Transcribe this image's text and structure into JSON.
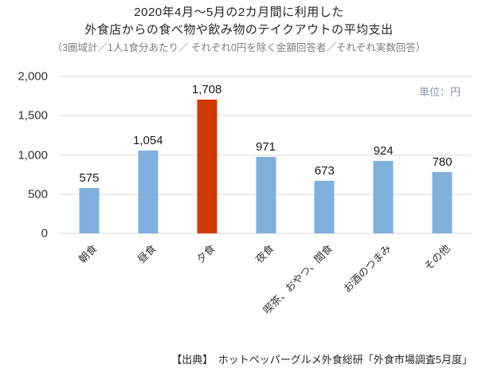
{
  "title": {
    "line1": "2020年4月～5月の2カ月間に利用した",
    "line2": "外食店からの食べ物や飲み物のテイクアウトの平均支出",
    "subtitle": "（3圏域計／1人1食分あたり／ それぞれ0円を除く金額回答者／それぞれ実数回答）"
  },
  "unit_label": "単位：円",
  "source": "【出典】　ホットペッパーグルメ外食総研「外食市場調査5月度」",
  "colors": {
    "bar_blue": "#7eb0dd",
    "bar_red": "#d03a05",
    "gridline": "#d9d9d9",
    "subtitle_gray": "#7f7f7f",
    "unit_gray_blue": "#8496b0",
    "text": "#262626"
  },
  "chart_data": {
    "type": "bar",
    "title": "2020年4月～5月の2カ月間に利用した外食店からの食べ物や飲み物のテイクアウトの平均支出",
    "subtitle": "（3圏域計／1人1食分あたり／ それぞれ0円を除く金額回答者／それぞれ実数回答）",
    "unit": "単位：円",
    "categories": [
      "朝食",
      "昼食",
      "夕食",
      "夜食",
      "喫茶、おやつ、間食",
      "お酒のつまみ",
      "その他"
    ],
    "values": [
      575,
      1054,
      1708,
      971,
      673,
      924,
      780
    ],
    "value_labels": [
      "575",
      "1,054",
      "1,708",
      "971",
      "673",
      "924",
      "780"
    ],
    "bar_colors": [
      "#7eb0dd",
      "#7eb0dd",
      "#d03a05",
      "#7eb0dd",
      "#7eb0dd",
      "#7eb0dd",
      "#7eb0dd"
    ],
    "highlight_index": 2,
    "xlabel": "",
    "ylabel": "",
    "ylim": [
      0,
      2000
    ],
    "yticks": [
      0,
      500,
      1000,
      1500,
      2000
    ],
    "ytick_labels": [
      "0",
      "500",
      "1,000",
      "1,500",
      "2,000"
    ],
    "grid": true,
    "legend": false,
    "bar_label_rotation_deg": -45
  }
}
